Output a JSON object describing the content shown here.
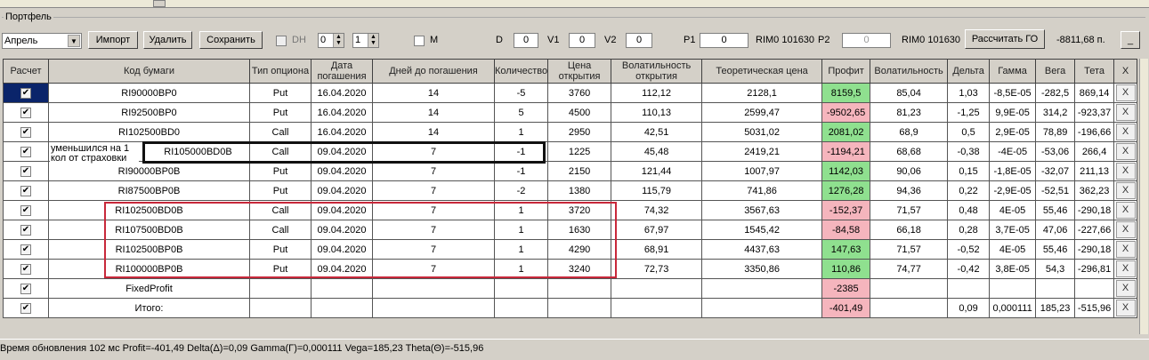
{
  "group_title": "Портфель",
  "toolbar": {
    "month": "Апрель",
    "import": "Импорт",
    "delete": "Удалить",
    "save": "Сохранить",
    "dh_label": "DH",
    "spin1": "0",
    "spin2": "1",
    "m_label": "M",
    "d_label": "D",
    "d_value": "0",
    "v1_label": "V1",
    "v1_value": "0",
    "v2_label": "V2",
    "v2_value": "0",
    "p1_label": "P1",
    "p1_value": "0",
    "p1_ticker": "RIM0 101630",
    "p2_label": "P2",
    "p2_value": "0",
    "p2_ticker": "RIM0 101630",
    "calc_go": "Рассчитать ГО",
    "go_value": "-8811,68 п.",
    "minimize": "_"
  },
  "columns": [
    "Расчет",
    "Код бумаги",
    "Тип опциона",
    "Дата погашения",
    "Дней до погашения",
    "Количество",
    "Цена открытия",
    "Волатильность открытия",
    "Теоретическая цена",
    "Профит",
    "Волатильность",
    "Дельта",
    "Гамма",
    "Вега",
    "Тета",
    "X"
  ],
  "rows": [
    {
      "code": "RI90000BP0",
      "type": "Put",
      "date": "16.04.2020",
      "days": "14",
      "qty": "-5",
      "price": "3760",
      "vol_open": "112,12",
      "theo": "2128,1",
      "profit": "8159,5",
      "profit_sign": "pos",
      "vol": "85,04",
      "delta": "1,03",
      "gamma": "-8,5E-05",
      "vega": "-282,5",
      "theta": "869,14"
    },
    {
      "code": "RI92500BP0",
      "type": "Put",
      "date": "16.04.2020",
      "days": "14",
      "qty": "5",
      "price": "4500",
      "vol_open": "110,13",
      "theo": "2599,47",
      "profit": "-9502,65",
      "profit_sign": "neg",
      "vol": "81,23",
      "delta": "-1,25",
      "gamma": "9,9E-05",
      "vega": "314,2",
      "theta": "-923,37"
    },
    {
      "code": "RI102500BD0",
      "type": "Call",
      "date": "16.04.2020",
      "days": "14",
      "qty": "1",
      "price": "2950",
      "vol_open": "42,51",
      "theo": "5031,02",
      "profit": "2081,02",
      "profit_sign": "pos",
      "vol": "68,9",
      "delta": "0,5",
      "gamma": "2,9E-05",
      "vega": "78,89",
      "theta": "-196,66"
    },
    {
      "code": "RI105000BD0B",
      "type": "Call",
      "date": "09.04.2020",
      "days": "7",
      "qty": "-1",
      "price": "1225",
      "vol_open": "45,48",
      "theo": "2419,21",
      "profit": "-1194,21",
      "profit_sign": "neg",
      "vol": "68,68",
      "delta": "-0,38",
      "gamma": "-4E-05",
      "vega": "-53,06",
      "theta": "266,4"
    },
    {
      "code": "RI90000BP0B",
      "type": "Put",
      "date": "09.04.2020",
      "days": "7",
      "qty": "-1",
      "price": "2150",
      "vol_open": "121,44",
      "theo": "1007,97",
      "profit": "1142,03",
      "profit_sign": "pos",
      "vol": "90,06",
      "delta": "0,15",
      "gamma": "-1,8E-05",
      "vega": "-32,07",
      "theta": "211,13"
    },
    {
      "code": "RI87500BP0B",
      "type": "Put",
      "date": "09.04.2020",
      "days": "7",
      "qty": "-2",
      "price": "1380",
      "vol_open": "115,79",
      "theo": "741,86",
      "profit": "1276,28",
      "profit_sign": "pos",
      "vol": "94,36",
      "delta": "0,22",
      "gamma": "-2,9E-05",
      "vega": "-52,51",
      "theta": "362,23"
    },
    {
      "code": "RI102500BD0B",
      "type": "Call",
      "date": "09.04.2020",
      "days": "7",
      "qty": "1",
      "price": "3720",
      "vol_open": "74,32",
      "theo": "3567,63",
      "profit": "-152,37",
      "profit_sign": "neg",
      "vol": "71,57",
      "delta": "0,48",
      "gamma": "4E-05",
      "vega": "55,46",
      "theta": "-290,18"
    },
    {
      "code": "RI107500BD0B",
      "type": "Call",
      "date": "09.04.2020",
      "days": "7",
      "qty": "1",
      "price": "1630",
      "vol_open": "67,97",
      "theo": "1545,42",
      "profit": "-84,58",
      "profit_sign": "neg",
      "vol": "66,18",
      "delta": "0,28",
      "gamma": "3,7E-05",
      "vega": "47,06",
      "theta": "-227,66"
    },
    {
      "code": "RI102500BP0B",
      "type": "Put",
      "date": "09.04.2020",
      "days": "7",
      "qty": "1",
      "price": "4290",
      "vol_open": "68,91",
      "theo": "4437,63",
      "profit": "147,63",
      "profit_sign": "pos",
      "vol": "71,57",
      "delta": "-0,52",
      "gamma": "4E-05",
      "vega": "55,46",
      "theta": "-290,18"
    },
    {
      "code": "RI100000BP0B",
      "type": "Put",
      "date": "09.04.2020",
      "days": "7",
      "qty": "1",
      "price": "3240",
      "vol_open": "72,73",
      "theo": "3350,86",
      "profit": "110,86",
      "profit_sign": "pos",
      "vol": "74,77",
      "delta": "-0,42",
      "gamma": "3,8E-05",
      "vega": "54,3",
      "theta": "-296,81"
    },
    {
      "code": "FixedProfit",
      "type": "",
      "date": "",
      "days": "",
      "qty": "",
      "price": "",
      "vol_open": "",
      "theo": "",
      "profit": "-2385",
      "profit_sign": "neg",
      "vol": "",
      "delta": "",
      "gamma": "",
      "vega": "",
      "theta": ""
    },
    {
      "code": "Итого:",
      "type": "",
      "date": "",
      "days": "",
      "qty": "",
      "price": "",
      "vol_open": "",
      "theo": "",
      "profit": "-401,49",
      "profit_sign": "neg",
      "vol": "",
      "delta": "0,09",
      "gamma": "0,000111",
      "vega": "185,23",
      "theta": "-515,96"
    }
  ],
  "delete_glyph": "X",
  "check_glyph": "✔",
  "annotation": {
    "line1": "уменьшился на 1",
    "line2": "кол от страховки"
  },
  "status": "Время обновления 102 мс  Profit=-401,49 Delta(Δ)=0,09 Gamma(Γ)=0,000111 Vega=185,23 Theta(Θ)=-515,96",
  "colors": {
    "profit_positive": "#8fe08f",
    "profit_negative": "#f5b5bd",
    "highlight_black": "#111111",
    "highlight_red": "#c8283a"
  }
}
